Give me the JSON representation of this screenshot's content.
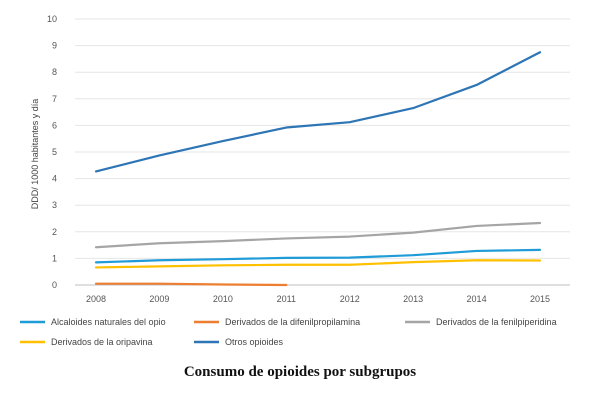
{
  "caption": "Consumo de opioides por subgrupos",
  "chart_data": {
    "type": "line",
    "title": "",
    "xlabel": "",
    "ylabel": "DDD/ 1000 habitantes y día",
    "ylim": [
      0,
      10
    ],
    "yticks": [
      0,
      1,
      2,
      3,
      4,
      5,
      6,
      7,
      8,
      9,
      10
    ],
    "grid": true,
    "legend_position": "bottom",
    "categories": [
      "2008",
      "2009",
      "2010",
      "2011",
      "2012",
      "2013",
      "2014",
      "2015"
    ],
    "series": [
      {
        "name": "Alcaloides naturales del opio",
        "color": "#1f9bd7",
        "values": [
          0.85,
          0.93,
          0.97,
          1.02,
          1.03,
          1.12,
          1.28,
          1.32
        ]
      },
      {
        "name": "Derivados de la difenilpropilamina",
        "color": "#ed7d31",
        "values": [
          0.05,
          0.05,
          0.02,
          0.0,
          null,
          null,
          null,
          null
        ]
      },
      {
        "name": "Derivados de la fenilpiperidina",
        "color": "#a5a5a5",
        "values": [
          1.42,
          1.57,
          1.65,
          1.75,
          1.82,
          1.97,
          2.22,
          2.33
        ]
      },
      {
        "name": "Derivados de la oripavina",
        "color": "#ffc000",
        "values": [
          0.66,
          0.7,
          0.74,
          0.76,
          0.76,
          0.86,
          0.93,
          0.92
        ]
      },
      {
        "name": "Otros opioides",
        "color": "#2e75b6",
        "values": [
          4.27,
          4.87,
          5.41,
          5.92,
          6.12,
          6.65,
          7.52,
          8.75
        ]
      }
    ]
  }
}
